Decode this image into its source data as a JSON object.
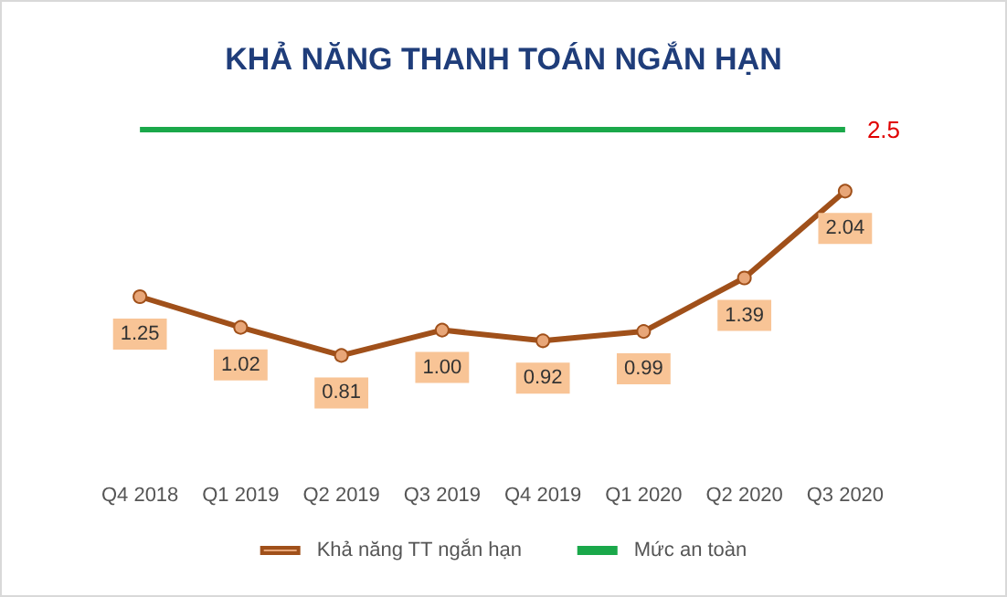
{
  "chart_data": {
    "type": "line",
    "title": "KHẢ NĂNG THANH TOÁN NGẮN HẠN",
    "categories": [
      "Q4 2018",
      "Q1 2019",
      "Q2 2019",
      "Q3 2019",
      "Q4 2019",
      "Q1 2020",
      "Q2 2020",
      "Q3 2020"
    ],
    "series": [
      {
        "name": "Khả năng TT ngắn hạn",
        "color": "#a0501a",
        "marker": "circle",
        "values": [
          1.25,
          1.02,
          0.81,
          1.0,
          0.92,
          0.99,
          1.39,
          2.04
        ],
        "value_labels": [
          "1.25",
          "1.02",
          "0.81",
          "1.00",
          "0.92",
          "0.99",
          "1.39",
          "2.04"
        ]
      },
      {
        "name": "Mức an toàn",
        "color": "#1aa84a",
        "marker": "none",
        "values": [
          2.5,
          2.5,
          2.5,
          2.5,
          2.5,
          2.5,
          2.5,
          2.5
        ],
        "value_labels": [
          null,
          null,
          null,
          null,
          null,
          null,
          null,
          "2.5"
        ]
      }
    ],
    "grid": false,
    "legend": "bottom"
  }
}
